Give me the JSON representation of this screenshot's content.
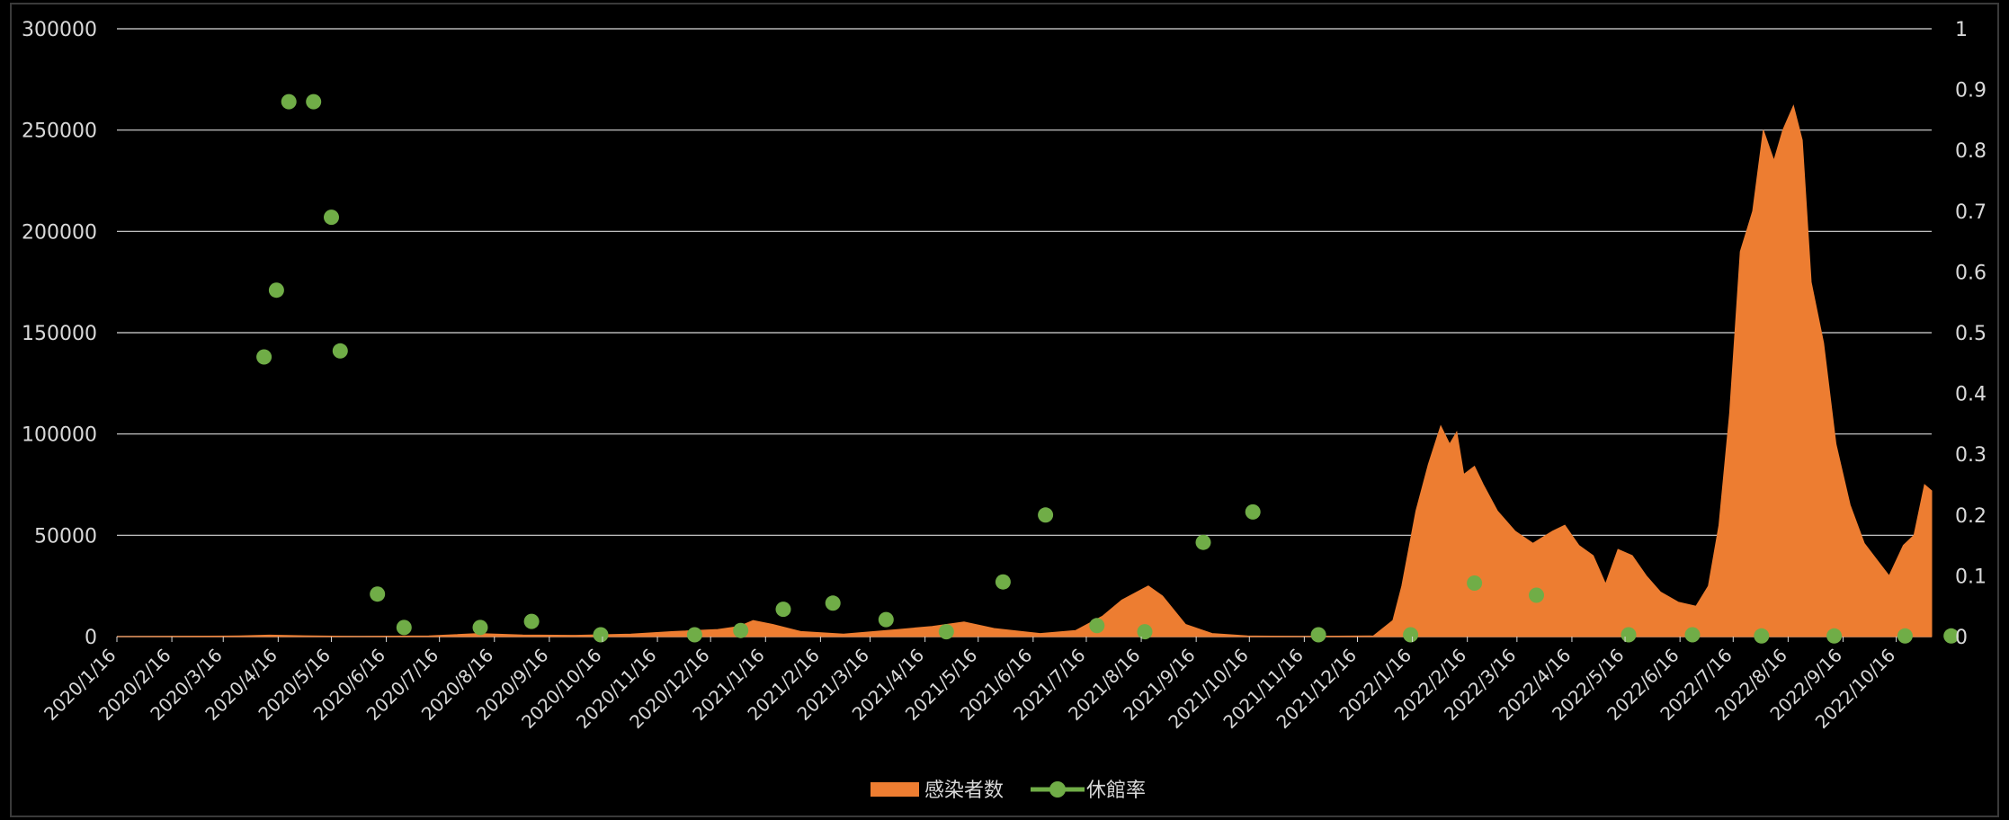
{
  "chart_data": {
    "type": "area",
    "title": "",
    "xlabel": "",
    "ylabel": "",
    "x_range": [
      "2020-01-16",
      "2022-11-05"
    ],
    "ylim_left": [
      0,
      300000
    ],
    "ylim_right": [
      0,
      1
    ],
    "left_ticks": [
      "0",
      "50000",
      "100000",
      "150000",
      "200000",
      "250000",
      "300000"
    ],
    "right_ticks": [
      "0",
      "0.1",
      "0.2",
      "0.3",
      "0.4",
      "0.5",
      "0.6",
      "0.7",
      "0.8",
      "0.9",
      "1"
    ],
    "x_ticks": [
      "2020/1/16",
      "2020/2/16",
      "2020/3/16",
      "2020/4/16",
      "2020/5/16",
      "2020/6/16",
      "2020/7/16",
      "2020/8/16",
      "2020/9/16",
      "2020/10/16",
      "2020/11/16",
      "2020/12/16",
      "2021/1/16",
      "2021/2/16",
      "2021/3/16",
      "2021/4/16",
      "2021/5/16",
      "2021/6/16",
      "2021/7/16",
      "2021/8/16",
      "2021/9/16",
      "2021/10/16",
      "2021/11/16",
      "2021/12/16",
      "2022/1/16",
      "2022/2/16",
      "2022/3/16",
      "2022/4/16",
      "2022/5/16",
      "2022/6/16",
      "2022/7/16",
      "2022/8/16",
      "2022/9/16",
      "2022/10/16"
    ],
    "grid": true,
    "legend_position": "bottom",
    "colors": {
      "infections": "#ED7D31",
      "closure_rate": "#70AD47",
      "grid": "#d9d9d9",
      "text": "#d9d9d9"
    },
    "series": [
      {
        "name": "感染者数",
        "type": "area",
        "axis": "left",
        "points": [
          [
            "2020-01-16",
            0
          ],
          [
            "2020-03-25",
            300
          ],
          [
            "2020-04-11",
            700
          ],
          [
            "2020-05-01",
            400
          ],
          [
            "2020-06-01",
            100
          ],
          [
            "2020-07-10",
            300
          ],
          [
            "2020-08-07",
            1500
          ],
          [
            "2020-09-01",
            800
          ],
          [
            "2020-10-01",
            600
          ],
          [
            "2020-11-01",
            1200
          ],
          [
            "2020-11-25",
            2500
          ],
          [
            "2020-12-20",
            3500
          ],
          [
            "2021-01-01",
            5000
          ],
          [
            "2021-01-09",
            7900
          ],
          [
            "2021-01-20",
            6000
          ],
          [
            "2021-02-05",
            2500
          ],
          [
            "2021-03-01",
            1200
          ],
          [
            "2021-04-01",
            3500
          ],
          [
            "2021-04-20",
            5000
          ],
          [
            "2021-05-08",
            7200
          ],
          [
            "2021-05-25",
            4000
          ],
          [
            "2021-06-20",
            1500
          ],
          [
            "2021-07-10",
            3000
          ],
          [
            "2021-07-25",
            10000
          ],
          [
            "2021-08-05",
            18000
          ],
          [
            "2021-08-20",
            25000
          ],
          [
            "2021-08-28",
            20000
          ],
          [
            "2021-09-10",
            6000
          ],
          [
            "2021-09-25",
            1500
          ],
          [
            "2021-10-15",
            300
          ],
          [
            "2021-11-15",
            150
          ],
          [
            "2021-12-25",
            300
          ],
          [
            "2022-01-05",
            8000
          ],
          [
            "2022-01-10",
            25000
          ],
          [
            "2022-01-18",
            62000
          ],
          [
            "2022-01-25",
            85000
          ],
          [
            "2022-02-01",
            104000
          ],
          [
            "2022-02-06",
            95000
          ],
          [
            "2022-02-10",
            101000
          ],
          [
            "2022-02-14",
            80000
          ],
          [
            "2022-02-20",
            84000
          ],
          [
            "2022-02-25",
            75000
          ],
          [
            "2022-03-05",
            62000
          ],
          [
            "2022-03-15",
            52000
          ],
          [
            "2022-03-25",
            46000
          ],
          [
            "2022-04-05",
            52000
          ],
          [
            "2022-04-12",
            55000
          ],
          [
            "2022-04-20",
            45000
          ],
          [
            "2022-04-28",
            40000
          ],
          [
            "2022-05-05",
            26000
          ],
          [
            "2022-05-12",
            43000
          ],
          [
            "2022-05-20",
            40000
          ],
          [
            "2022-05-28",
            30000
          ],
          [
            "2022-06-05",
            22000
          ],
          [
            "2022-06-15",
            17000
          ],
          [
            "2022-06-25",
            15000
          ],
          [
            "2022-07-02",
            25000
          ],
          [
            "2022-07-08",
            55000
          ],
          [
            "2022-07-14",
            110000
          ],
          [
            "2022-07-20",
            190000
          ],
          [
            "2022-07-27",
            210000
          ],
          [
            "2022-08-02",
            250000
          ],
          [
            "2022-08-08",
            235000
          ],
          [
            "2022-08-13",
            250000
          ],
          [
            "2022-08-19",
            262000
          ],
          [
            "2022-08-24",
            245000
          ],
          [
            "2022-08-29",
            175000
          ],
          [
            "2022-09-05",
            145000
          ],
          [
            "2022-09-12",
            95000
          ],
          [
            "2022-09-20",
            65000
          ],
          [
            "2022-09-28",
            46000
          ],
          [
            "2022-10-05",
            38000
          ],
          [
            "2022-10-12",
            30000
          ],
          [
            "2022-10-20",
            45000
          ],
          [
            "2022-10-26",
            50000
          ],
          [
            "2022-11-01",
            75000
          ],
          [
            "2022-11-05",
            72000
          ]
        ]
      },
      {
        "name": "休館率",
        "type": "scatter",
        "axis": "right",
        "points": [
          [
            "2020-04-08",
            0.46
          ],
          [
            "2020-04-15",
            0.57
          ],
          [
            "2020-04-22",
            0.88
          ],
          [
            "2020-05-06",
            0.88
          ],
          [
            "2020-05-16",
            0.69
          ],
          [
            "2020-05-21",
            0.47
          ],
          [
            "2020-06-11",
            0.07
          ],
          [
            "2020-06-26",
            0.015
          ],
          [
            "2020-08-08",
            0.015
          ],
          [
            "2020-09-06",
            0.025
          ],
          [
            "2020-10-15",
            0.003
          ],
          [
            "2020-12-07",
            0.003
          ],
          [
            "2021-01-02",
            0.01
          ],
          [
            "2021-01-26",
            0.045
          ],
          [
            "2021-02-23",
            0.055
          ],
          [
            "2021-03-25",
            0.028
          ],
          [
            "2021-04-28",
            0.008
          ],
          [
            "2021-05-30",
            0.09
          ],
          [
            "2021-06-23",
            0.2
          ],
          [
            "2021-07-22",
            0.018
          ],
          [
            "2021-08-18",
            0.008
          ],
          [
            "2021-09-20",
            0.155
          ],
          [
            "2021-10-18",
            0.205
          ],
          [
            "2021-11-24",
            0.003
          ],
          [
            "2022-01-15",
            0.003
          ],
          [
            "2022-02-20",
            0.088
          ],
          [
            "2022-03-27",
            0.068
          ],
          [
            "2022-05-18",
            0.003
          ],
          [
            "2022-06-23",
            0.003
          ],
          [
            "2022-08-01",
            0.001
          ],
          [
            "2022-09-11",
            0.001
          ],
          [
            "2022-10-21",
            0.001
          ],
          [
            "2022-11-16",
            0.001
          ]
        ]
      }
    ]
  }
}
